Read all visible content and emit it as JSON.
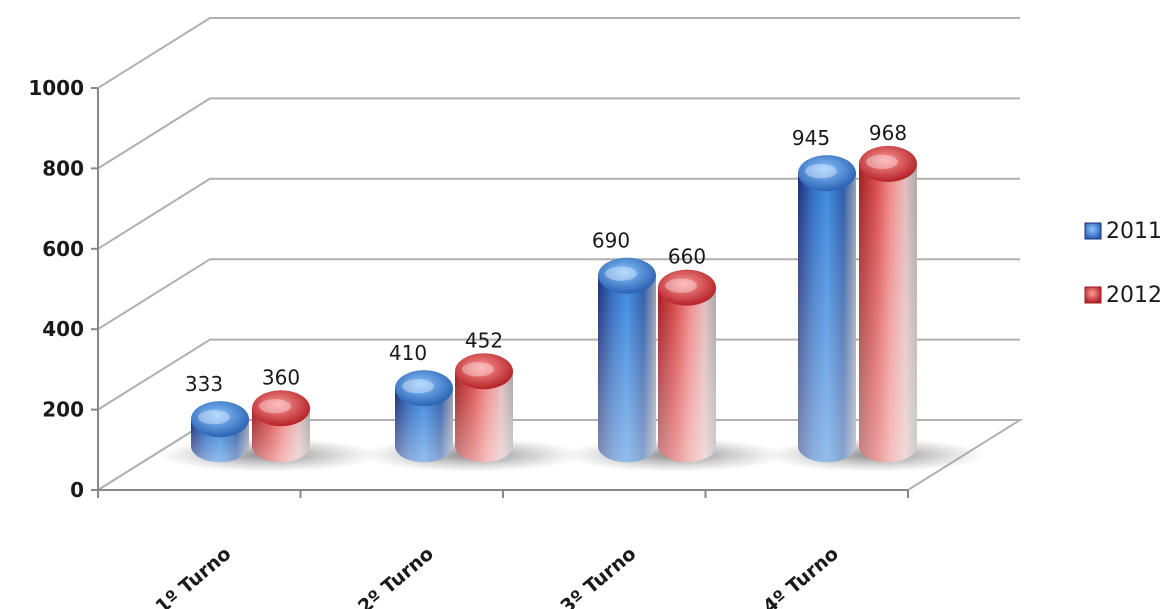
{
  "chart_data": {
    "type": "bar",
    "style": "3d-cylinder",
    "categories": [
      "1º Turno",
      "2º Turno",
      "3º Turno",
      "4º Turno"
    ],
    "series": [
      {
        "name": "2011",
        "values": [
          333,
          410,
          690,
          945
        ],
        "color": "#2e6fc4"
      },
      {
        "name": "2012",
        "values": [
          360,
          452,
          660,
          968
        ],
        "color": "#d0383a"
      }
    ],
    "ylim": [
      0,
      1000
    ],
    "yticks": [
      "0",
      "200",
      "400",
      "600",
      "800",
      "1000"
    ],
    "grid": true,
    "legend": "right"
  }
}
